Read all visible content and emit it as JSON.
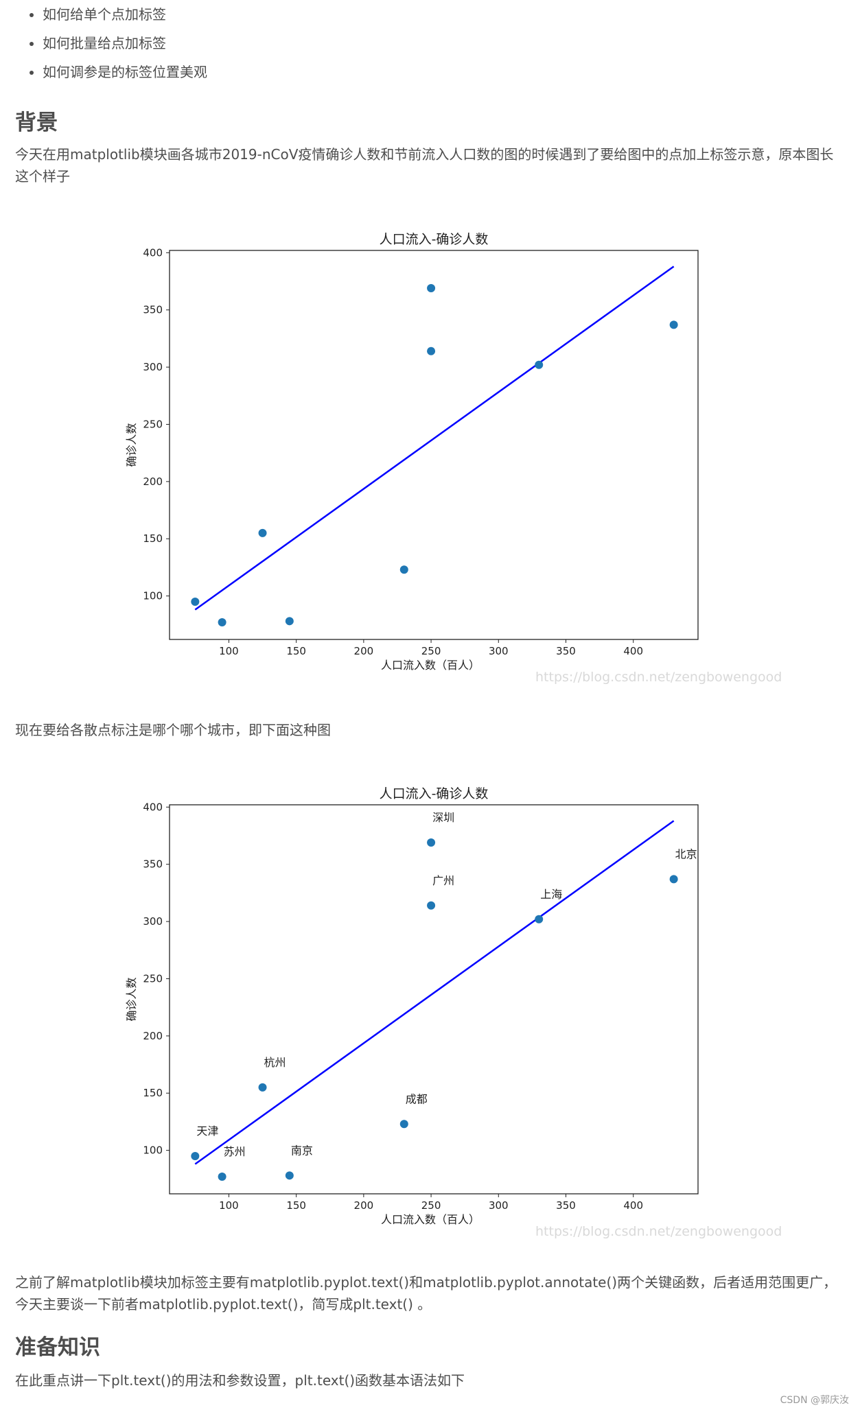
{
  "bullets": [
    "如何给单个点加标签",
    "如何批量给点加标签",
    "如何调参是的标签位置美观"
  ],
  "section_background": {
    "heading": "背景",
    "text": "今天在用matplotlib模块画各城市2019-nCoV疫情确诊人数和节前流入人口数的图的时候遇到了要给图中的点加上标签示意，原本图长这个样子"
  },
  "between_text": "现在要给各散点标注是哪个哪个城市，即下面这种图",
  "after_text": "之前了解matplotlib模块加标签主要有matplotlib.pyplot.text()和matplotlib.pyplot.annotate()两个关键函数，后者适用范围更广，今天主要谈一下前者matplotlib.pyplot.text()，简写成plt.text() 。",
  "section_prep": {
    "heading": "准备知识",
    "text": "在此重点讲一下plt.text()的用法和参数设置，plt.text()函数基本语法如下"
  },
  "watermark": "https://blog.csdn.net/zengbowengood",
  "footer": "CSDN @郭庆汝",
  "colors": {
    "point": "#1f77b4",
    "line": "#0000ff"
  },
  "chart_data": [
    {
      "type": "scatter",
      "title": "人口流入-确诊人数",
      "xlabel": "人口流入数（百人）",
      "ylabel": "确诊人数",
      "xlim": [
        56,
        448
      ],
      "ylim": [
        62,
        402
      ],
      "xticks": [
        "100",
        "150",
        "200",
        "250",
        "300",
        "350",
        "400"
      ],
      "yticks": [
        "100",
        "150",
        "200",
        "250",
        "300",
        "350",
        "400"
      ],
      "points": [
        {
          "x": 75,
          "y": 95
        },
        {
          "x": 95,
          "y": 77
        },
        {
          "x": 125,
          "y": 155
        },
        {
          "x": 145,
          "y": 78
        },
        {
          "x": 230,
          "y": 123
        },
        {
          "x": 250,
          "y": 314
        },
        {
          "x": 250,
          "y": 369
        },
        {
          "x": 330,
          "y": 302
        },
        {
          "x": 430,
          "y": 337
        }
      ],
      "fit_line": [
        {
          "x": 75,
          "y": 88
        },
        {
          "x": 430,
          "y": 388
        }
      ]
    },
    {
      "type": "scatter",
      "title": "人口流入-确诊人数",
      "xlabel": "人口流入数（百人）",
      "ylabel": "确诊人数",
      "xlim": [
        56,
        448
      ],
      "ylim": [
        62,
        402
      ],
      "xticks": [
        "100",
        "150",
        "200",
        "250",
        "300",
        "350",
        "400"
      ],
      "yticks": [
        "100",
        "150",
        "200",
        "250",
        "300",
        "350",
        "400"
      ],
      "points": [
        {
          "x": 75,
          "y": 95,
          "label": "天津"
        },
        {
          "x": 95,
          "y": 77,
          "label": "苏州"
        },
        {
          "x": 125,
          "y": 155,
          "label": "杭州"
        },
        {
          "x": 145,
          "y": 78,
          "label": "南京"
        },
        {
          "x": 230,
          "y": 123,
          "label": "成都"
        },
        {
          "x": 250,
          "y": 314,
          "label": "广州"
        },
        {
          "x": 250,
          "y": 369,
          "label": "深圳"
        },
        {
          "x": 330,
          "y": 302,
          "label": "上海"
        },
        {
          "x": 430,
          "y": 337,
          "label": "北京"
        }
      ],
      "fit_line": [
        {
          "x": 75,
          "y": 88
        },
        {
          "x": 430,
          "y": 388
        }
      ]
    }
  ]
}
